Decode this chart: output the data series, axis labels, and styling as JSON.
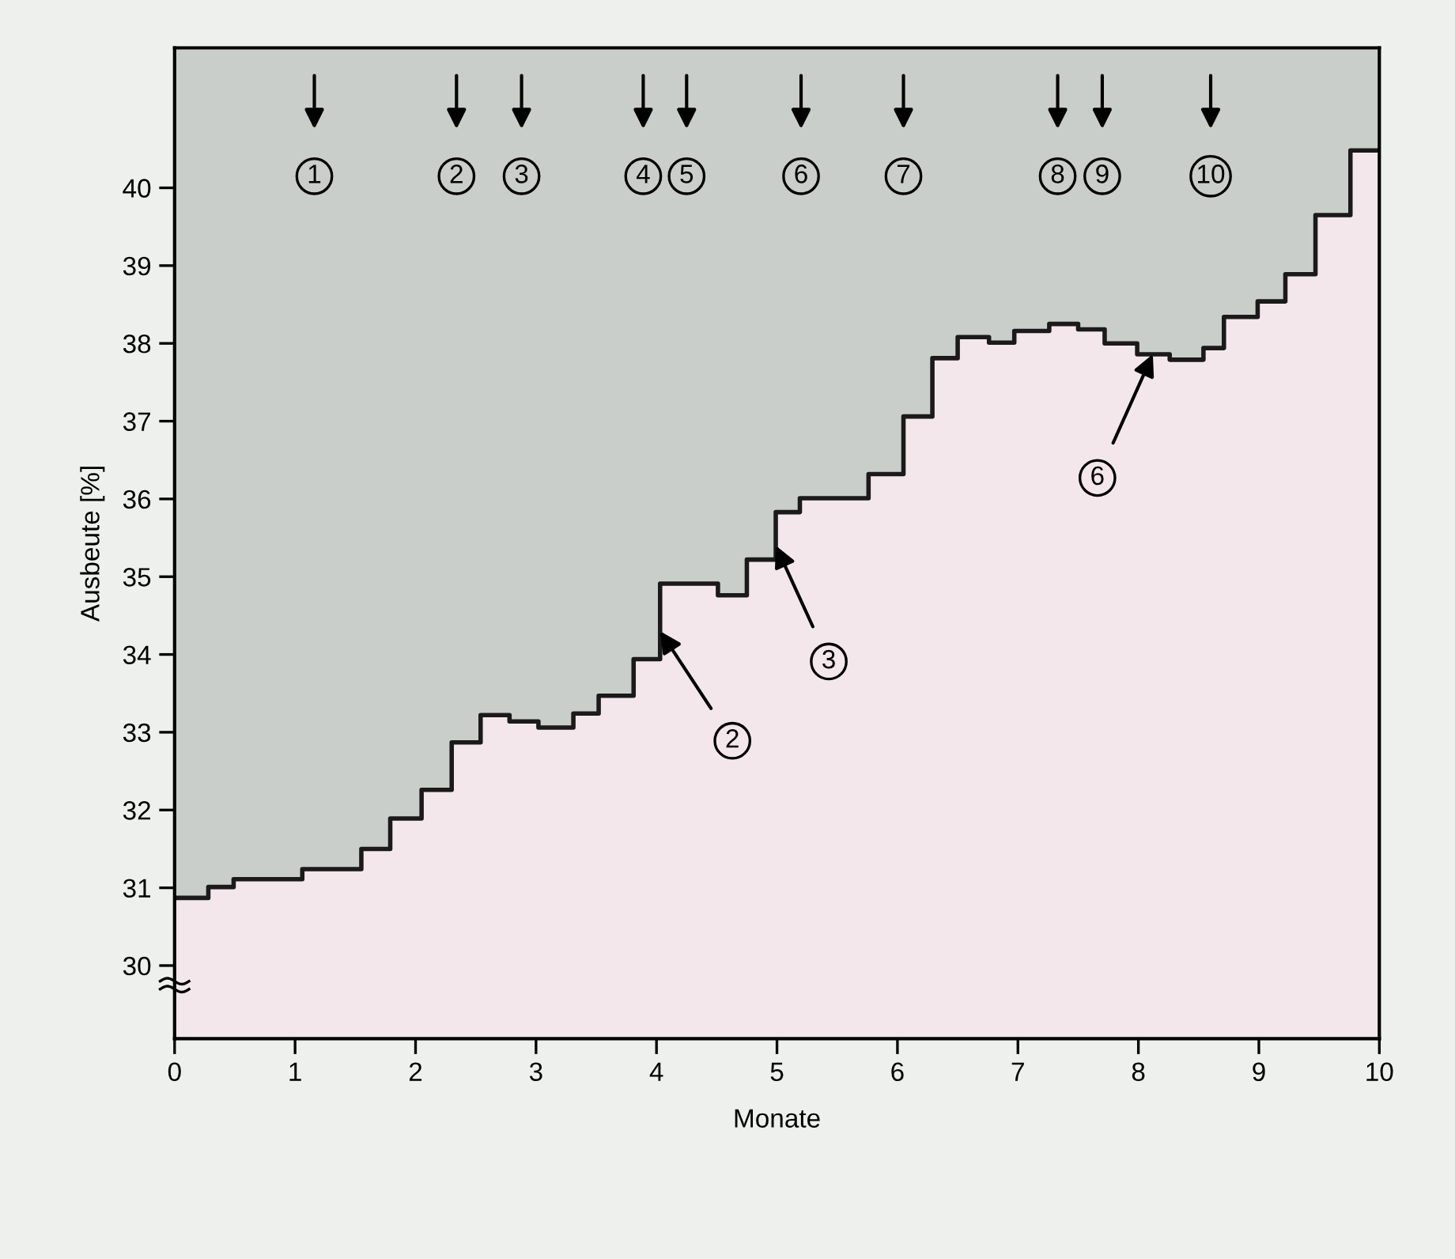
{
  "chart_data": {
    "type": "step",
    "xlabel": "Monate",
    "ylabel": "Ausbeute [%]",
    "x": [
      0,
      0.28,
      0.49,
      1.06,
      1.55,
      1.79,
      2.05,
      2.3,
      2.54,
      2.78,
      3.02,
      3.31,
      3.52,
      3.81,
      4.03,
      4.51,
      4.75,
      4.99,
      5.19,
      5.76,
      6.05,
      6.29,
      6.5,
      6.76,
      6.97,
      7.26,
      7.5,
      7.72,
      7.99,
      8.26,
      8.54,
      8.71,
      8.99,
      9.22,
      9.47,
      9.76,
      10
    ],
    "series": [
      {
        "type": "area",
        "color": "#f3e7ec",
        "values": [
          30.87,
          31.01,
          31.11,
          31.24,
          31.5,
          31.89,
          32.26,
          32.87,
          33.22,
          33.14,
          33.06,
          33.24,
          33.47,
          33.94,
          34.91,
          34.76,
          35.22,
          35.83,
          36.01,
          36.32,
          37.06,
          37.81,
          38.08,
          38.01,
          38.16,
          38.25,
          38.18,
          38.0,
          37.86,
          37.79,
          37.94,
          38.34,
          38.54,
          38.89,
          39.65,
          40.48,
          40.48
        ]
      },
      {
        "color": "#1a1a1a",
        "values": [
          30.87,
          31.01,
          31.11,
          31.24,
          31.5,
          31.89,
          32.26,
          32.87,
          33.22,
          33.14,
          33.06,
          33.24,
          33.47,
          33.94,
          34.91,
          34.76,
          35.22,
          35.83,
          36.01,
          36.32,
          37.06,
          37.81,
          38.08,
          38.01,
          38.16,
          38.25,
          38.18,
          38.0,
          37.86,
          37.79,
          37.94,
          38.34,
          38.54,
          38.89,
          39.65,
          40.48,
          40.48
        ]
      }
    ],
    "xlim": [
      0,
      10
    ],
    "ylim": [
      29.06,
      41.8
    ],
    "xticks": [
      0,
      1,
      2,
      3,
      4,
      5,
      6,
      7,
      8,
      9,
      10
    ],
    "yticks": [
      30,
      31,
      32,
      33,
      34,
      35,
      36,
      37,
      38,
      39,
      40
    ],
    "grid": false,
    "legend": false,
    "annotations": [
      {
        "text": "1",
        "x": 1.16,
        "y": 40.15
      },
      {
        "text": "2",
        "x": 2.34,
        "y": 40.15
      },
      {
        "text": "3",
        "x": 2.88,
        "y": 40.15
      },
      {
        "text": "4",
        "x": 3.89,
        "y": 40.15
      },
      {
        "text": "5",
        "x": 4.25,
        "y": 40.15
      },
      {
        "text": "6",
        "x": 5.2,
        "y": 40.15
      },
      {
        "text": "7",
        "x": 6.05,
        "y": 40.15
      },
      {
        "text": "8",
        "x": 7.33,
        "y": 40.15
      },
      {
        "text": "9",
        "x": 7.7,
        "y": 40.15
      },
      {
        "text": "10",
        "x": 8.6,
        "y": 40.15
      },
      {
        "text": "2",
        "x": 4.03,
        "y": 34.3
      },
      {
        "text": "3",
        "x": 4.99,
        "y": 35.4
      },
      {
        "text": "6",
        "x": 8.12,
        "y": 37.86
      }
    ]
  }
}
